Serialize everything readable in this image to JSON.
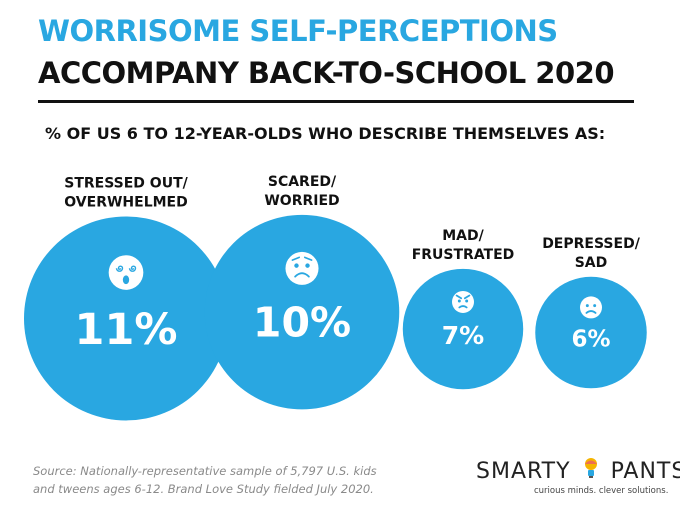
{
  "header": {
    "title_line1": "WORRISOME SELF-PERCEPTIONS",
    "title_line2": "ACCOMPANY BACK-TO-SCHOOL 2020",
    "subtitle": "% OF US 6 TO 12-YEAR-OLDS WHO DESCRIBE THEMSELVES AS:"
  },
  "chart_data": {
    "type": "bubble",
    "title": "% OF US 6 TO 12-YEAR-OLDS WHO DESCRIBE THEMSELVES AS:",
    "unit": "%",
    "categories": [
      {
        "label_lines": [
          "STRESSED OUT/",
          "OVERWHELMED"
        ],
        "value": 11,
        "value_label": "11%",
        "icon": "dizzy-face-icon"
      },
      {
        "label_lines": [
          "SCARED/",
          "WORRIED"
        ],
        "value": 10,
        "value_label": "10%",
        "icon": "worried-face-icon"
      },
      {
        "label_lines": [
          "MAD/",
          "FRUSTRATED"
        ],
        "value": 7,
        "value_label": "7%",
        "icon": "angry-face-icon"
      },
      {
        "label_lines": [
          "DEPRESSED/",
          "SAD"
        ],
        "value": 6,
        "value_label": "6%",
        "icon": "sad-face-icon"
      }
    ],
    "colors": {
      "bubble": "#29a7e1",
      "text": "#ffffff",
      "label": "#111111"
    }
  },
  "footer": {
    "source_line1": "Source: Nationally-representative sample of 5,797 U.S. kids",
    "source_line2": "and tweens ages 6-12. Brand Love Study fielded July 2020.",
    "logo_left": "SMARTY",
    "logo_right": "PANTS",
    "logo_tagline": "curious minds. clever solutions."
  }
}
